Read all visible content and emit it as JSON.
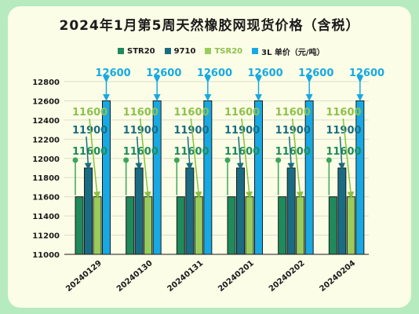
{
  "title": "2024年1月第5周天然橡胶网现货价格（含税）",
  "chart_data": {
    "type": "bar",
    "categories": [
      "20240129",
      "20240130",
      "20240131",
      "20240201",
      "20240202",
      "20240204"
    ],
    "series": [
      {
        "name": "STR20",
        "color": "#1f8a5b",
        "values": [
          11600,
          11600,
          11600,
          11600,
          11600,
          11600
        ]
      },
      {
        "name": "9710",
        "color": "#1a6c82",
        "values": [
          11900,
          11900,
          11900,
          11900,
          11900,
          11900
        ]
      },
      {
        "name": "TSR20",
        "color": "#98cc5c",
        "values": [
          11600,
          11600,
          11600,
          11600,
          11600,
          11600
        ]
      },
      {
        "name": "3L 单价（元/吨）",
        "color": "#17a9e3",
        "values": [
          12600,
          12600,
          12600,
          12600,
          12600,
          12600
        ]
      }
    ],
    "ylim": [
      11000,
      12800
    ],
    "yticks": [
      11000,
      11200,
      11400,
      11600,
      11800,
      12000,
      12200,
      12400,
      12600,
      12800
    ],
    "grid": true,
    "legend": "top"
  }
}
